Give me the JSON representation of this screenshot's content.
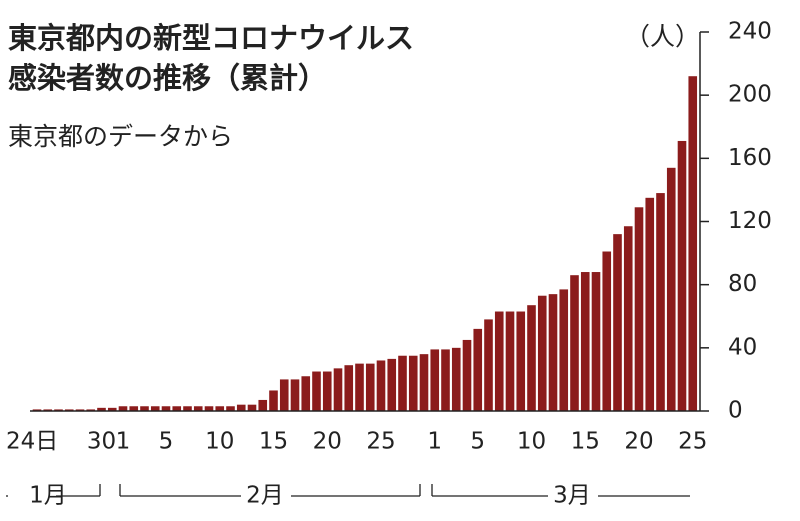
{
  "chart_data": {
    "type": "bar",
    "title": [
      "東京都内の新型コロナウイルス",
      "感染者数の推移（累計）"
    ],
    "subtitle": "東京都のデータから",
    "y_label": "（人）",
    "color": "#8b1c1c",
    "categories": [
      "24日",
      null,
      null,
      null,
      null,
      null,
      "30",
      null,
      "1",
      null,
      null,
      null,
      "5",
      null,
      null,
      null,
      null,
      "10",
      null,
      null,
      null,
      null,
      "15",
      null,
      null,
      null,
      null,
      "20",
      null,
      null,
      null,
      null,
      "25",
      null,
      null,
      null,
      null,
      "1",
      null,
      null,
      null,
      "5",
      null,
      null,
      null,
      null,
      "10",
      null,
      null,
      null,
      null,
      "15",
      null,
      null,
      null,
      null,
      "20",
      null,
      null,
      null,
      null,
      "25"
    ],
    "values": [
      1,
      1,
      1,
      1,
      1,
      1,
      2,
      2,
      3,
      3,
      3,
      3,
      3,
      3,
      3,
      3,
      3,
      3,
      3,
      4,
      4,
      7,
      13,
      20,
      20,
      22,
      25,
      25,
      27,
      29,
      30,
      30,
      32,
      33,
      35,
      35,
      36,
      39,
      39,
      40,
      45,
      52,
      58,
      63,
      63,
      63,
      67,
      73,
      74,
      77,
      86,
      88,
      88,
      101,
      112,
      117,
      129,
      135,
      138,
      154,
      171,
      212
    ],
    "months": [
      "1月",
      "2月",
      "3月"
    ],
    "ylim": [
      0,
      240
    ],
    "yticks": [
      0,
      40,
      80,
      120,
      160,
      200,
      240
    ]
  }
}
